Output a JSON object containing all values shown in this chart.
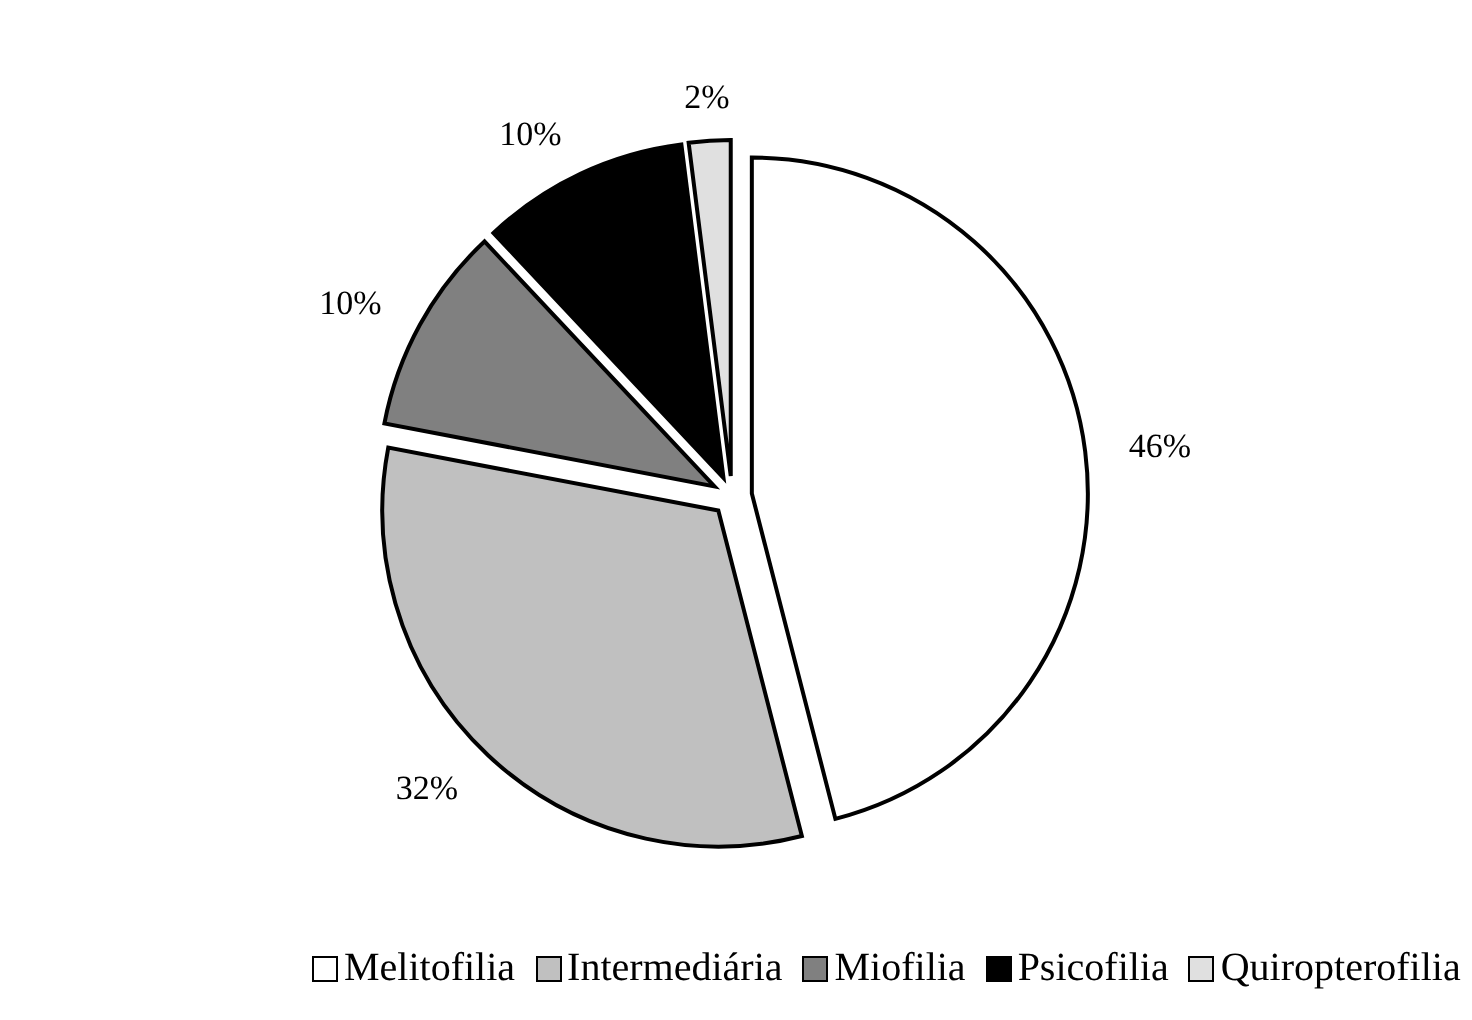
{
  "chart_data": {
    "type": "pie",
    "categories": [
      "Melitofilia",
      "Intermediária",
      "Miofilia",
      "Psicofilia",
      "Quiropterofilia"
    ],
    "values": [
      46,
      32,
      10,
      10,
      2
    ],
    "colors": [
      "#ffffff",
      "#c0c0c0",
      "#808080",
      "#000000",
      "#e0e0e0"
    ],
    "value_labels": [
      "46%",
      "32%",
      "10%",
      "10%",
      "2%"
    ],
    "legend": "bottom"
  }
}
